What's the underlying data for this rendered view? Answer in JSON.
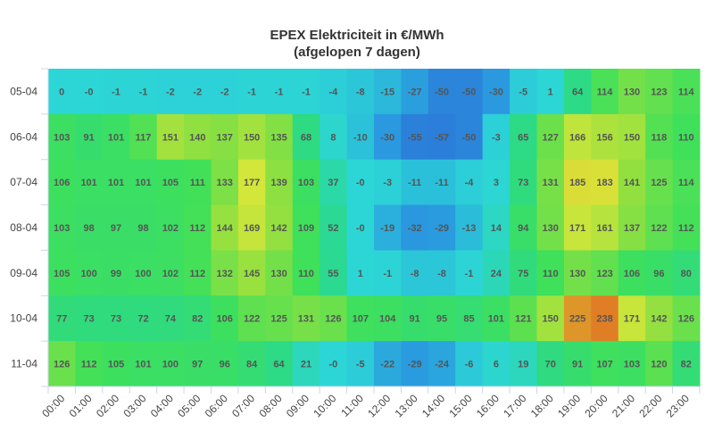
{
  "chart_data": {
    "type": "heatmap",
    "title": "EPEX Elektriciteit in €/MWh",
    "subtitle": "(afgelopen 7 dagen)",
    "x_categories": [
      "00:00",
      "01:00",
      "02:00",
      "03:00",
      "04:00",
      "05:00",
      "06:00",
      "07:00",
      "08:00",
      "09:00",
      "10:00",
      "11:00",
      "12:00",
      "13:00",
      "14:00",
      "15:00",
      "16:00",
      "17:00",
      "18:00",
      "19:00",
      "20:00",
      "21:00",
      "22:00",
      "23:00"
    ],
    "y_categories": [
      "05-04",
      "06-04",
      "07-04",
      "08-04",
      "09-04",
      "10-04",
      "11-04"
    ],
    "values": [
      [
        "0",
        "-0",
        "-1",
        "-1",
        "-2",
        "-2",
        "-2",
        "-1",
        "-1",
        "-1",
        "-4",
        "-8",
        "-15",
        "-27",
        "-50",
        "-50",
        "-30",
        "-5",
        "1",
        "64",
        "114",
        "130",
        "123",
        "114"
      ],
      [
        "103",
        "91",
        "101",
        "117",
        "151",
        "140",
        "137",
        "150",
        "135",
        "68",
        "8",
        "-10",
        "-30",
        "-55",
        "-57",
        "-50",
        "-3",
        "65",
        "127",
        "166",
        "156",
        "150",
        "118",
        "110"
      ],
      [
        "106",
        "101",
        "101",
        "101",
        "105",
        "111",
        "133",
        "177",
        "139",
        "103",
        "37",
        "-0",
        "-3",
        "-11",
        "-11",
        "-4",
        "3",
        "73",
        "131",
        "185",
        "183",
        "141",
        "125",
        "114"
      ],
      [
        "103",
        "98",
        "97",
        "98",
        "102",
        "112",
        "144",
        "169",
        "142",
        "109",
        "52",
        "-0",
        "-19",
        "-32",
        "-29",
        "-13",
        "14",
        "94",
        "130",
        "171",
        "161",
        "137",
        "122",
        "112"
      ],
      [
        "105",
        "100",
        "99",
        "100",
        "102",
        "112",
        "132",
        "145",
        "130",
        "110",
        "55",
        "1",
        "-1",
        "-8",
        "-8",
        "-1",
        "24",
        "75",
        "110",
        "130",
        "123",
        "106",
        "96",
        "80"
      ],
      [
        "77",
        "73",
        "73",
        "72",
        "74",
        "82",
        "106",
        "122",
        "125",
        "131",
        "126",
        "107",
        "104",
        "91",
        "95",
        "85",
        "101",
        "121",
        "150",
        "225",
        "238",
        "171",
        "142",
        "126"
      ],
      [
        "126",
        "112",
        "105",
        "101",
        "100",
        "97",
        "96",
        "84",
        "64",
        "21",
        "-0",
        "-5",
        "-22",
        "-29",
        "-24",
        "-6",
        "6",
        "19",
        "70",
        "91",
        "107",
        "103",
        "120",
        "82"
      ]
    ],
    "color_scale": {
      "stops": [
        {
          "value": -60,
          "color": "#2b7bd9"
        },
        {
          "value": -30,
          "color": "#2a99df"
        },
        {
          "value": 0,
          "color": "#2cd6d6"
        },
        {
          "value": 60,
          "color": "#2bd98a"
        },
        {
          "value": 110,
          "color": "#3fe05a"
        },
        {
          "value": 140,
          "color": "#8fe040"
        },
        {
          "value": 180,
          "color": "#d9e63a"
        },
        {
          "value": 240,
          "color": "#e07a25"
        }
      ]
    },
    "grid": false,
    "legend": "none"
  }
}
